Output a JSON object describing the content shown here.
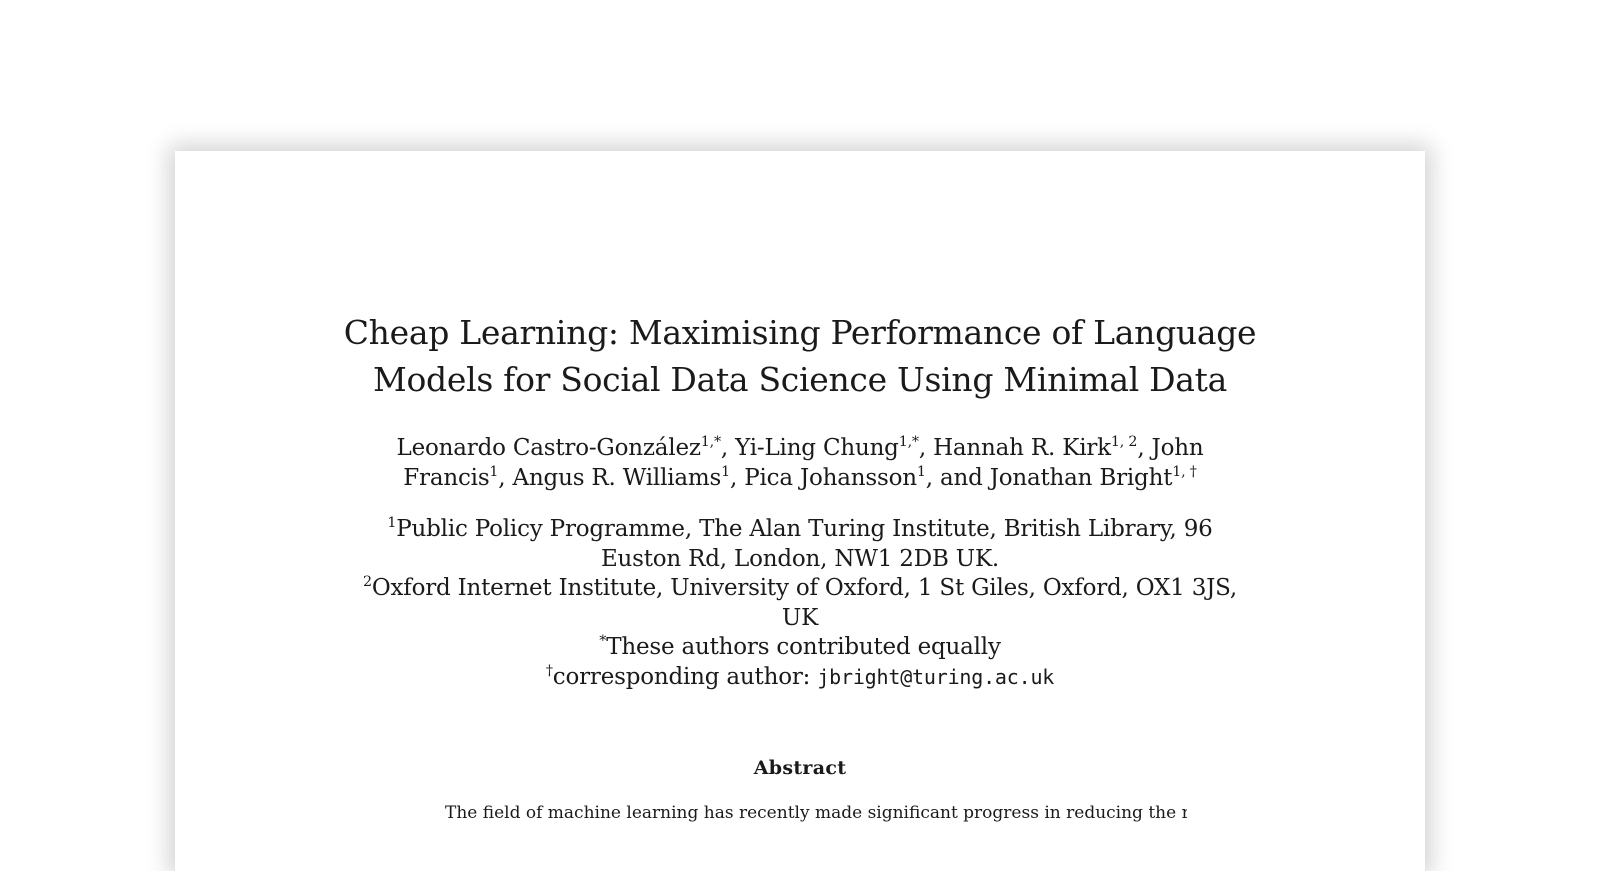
{
  "paper": {
    "title_lines": [
      "Cheap Learning: Maximising Performance of Language",
      "Models for Social Data Science Using Minimal Data"
    ],
    "authors": [
      {
        "name": "Leonardo Castro-González",
        "sup": "1,*"
      },
      {
        "name": "Yi-Ling Chung",
        "sup": "1,*"
      },
      {
        "name": "Hannah R. Kirk",
        "sup": "1, 2"
      },
      {
        "name": "John Francis",
        "sup": "1"
      },
      {
        "name": "Angus R. Williams",
        "sup": "1"
      },
      {
        "name": "Pica Johansson",
        "sup": "1"
      },
      {
        "name": "Jonathan Bright",
        "sup": "1, †"
      }
    ],
    "affiliations": {
      "aff1_sup": "1",
      "aff1_line1": "Public Policy Programme, The Alan Turing Institute, British Library, 96",
      "aff1_line2": "Euston Rd, London, NW1 2DB UK.",
      "aff2_sup": "2",
      "aff2_line1": "Oxford Internet Institute, University of Oxford, 1 St Giles, Oxford, OX1 3JS,",
      "aff2_line2": "UK",
      "equal_sup": "*",
      "equal_text": "These authors contributed equally",
      "corr_sup": "†",
      "corr_text": "corresponding author: ",
      "corr_email": "jbright@turing.ac.uk"
    },
    "abstract_heading": "Abstract",
    "abstract_first_line": "The field of machine learning has recently made significant progress in reducing the re-"
  }
}
